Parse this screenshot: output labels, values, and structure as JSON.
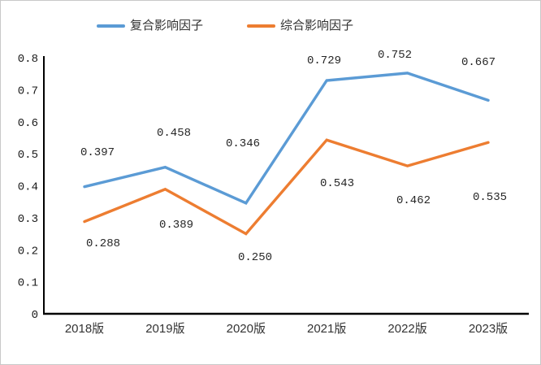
{
  "chart_data": {
    "type": "line",
    "title": "",
    "xlabel": "",
    "ylabel": "",
    "categories": [
      "2018版",
      "2019版",
      "2020版",
      "2021版",
      "2022版",
      "2023版"
    ],
    "series": [
      {
        "name": "复合影响因子",
        "color": "#5B9BD5",
        "values": [
          0.397,
          0.458,
          0.346,
          0.729,
          0.752,
          0.667
        ],
        "labels": [
          "0.397",
          "0.458",
          "0.346",
          "0.729",
          "0.752",
          "0.667"
        ]
      },
      {
        "name": "综合影响因子",
        "color": "#ED7D31",
        "values": [
          0.288,
          0.389,
          0.25,
          0.543,
          0.462,
          0.535
        ],
        "labels": [
          "0.288",
          "0.389",
          "0.250",
          "0.543",
          "0.462",
          "0.535"
        ]
      }
    ],
    "ylim": [
      0,
      0.8
    ],
    "ytick_step": 0.1,
    "yticks": [
      "0",
      "0.1",
      "0.2",
      "0.3",
      "0.4",
      "0.5",
      "0.6",
      "0.7",
      "0.8"
    ],
    "legend_position": "top",
    "grid": false
  },
  "colors": {
    "series_blue": "#5B9BD5",
    "series_orange": "#ED7D31",
    "axis": "#000000",
    "tick_text": "#1a1a1a",
    "data_label_text": "#262626",
    "category_text": "#333333",
    "frame_border": "#c8c8c8",
    "background": "#ffffff"
  }
}
